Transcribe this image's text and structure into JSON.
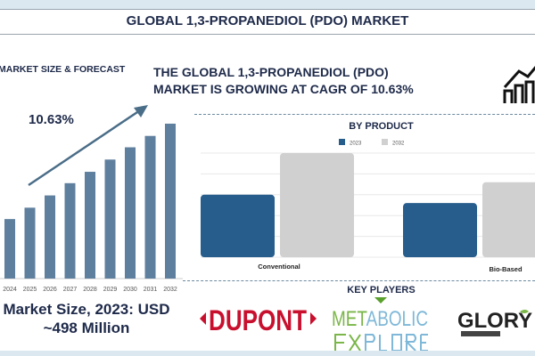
{
  "title": "GLOBAL 1,3-PROPANEDIOL (PDO) MARKET",
  "headline": [
    "THE GLOBAL 1,3-PROPANEDIOL (PDO)",
    "MARKET IS GROWING AT CAGR OF 10.63%"
  ],
  "market_size_label": "MARKET SIZE & FORECAST",
  "cagr_label": "10.63%",
  "market_size_text": [
    "Market Size, 2023: USD",
    "~498 Million"
  ],
  "key_players_title": "KEY PLAYERS",
  "key_players": [
    "DUPONT",
    "METABOLIC EXPLORER",
    "GLORY"
  ],
  "icons": {
    "growth": "house-chart-growth-icon",
    "arrow": "trend-arrow-icon",
    "chevron": "chevron-down-icon"
  },
  "colors": {
    "forecast_bar": "#5f7f9e",
    "series_2023": "#275d8c",
    "series_2032": "#d0d0d0",
    "text": "#1e2a4a",
    "dupont": "#c8102e"
  },
  "chart_data": [
    {
      "type": "bar",
      "title": "MARKET SIZE & FORECAST",
      "categories": [
        "2024",
        "2025",
        "2026",
        "2027",
        "2028",
        "2029",
        "2030",
        "2031",
        "2032"
      ],
      "values": [
        68,
        81,
        95,
        109,
        122,
        136,
        150,
        163,
        177
      ],
      "ylim": [
        0,
        180
      ],
      "grid": false
    },
    {
      "type": "bar",
      "title": "BY PRODUCT",
      "categories": [
        "Conventional",
        "Bio-Based"
      ],
      "series": [
        {
          "name": "2023",
          "values": [
            3.0,
            2.6
          ]
        },
        {
          "name": "2032",
          "values": [
            5.0,
            3.6
          ]
        }
      ],
      "ylim": [
        0,
        5
      ],
      "grid": true,
      "legend": "top"
    }
  ]
}
